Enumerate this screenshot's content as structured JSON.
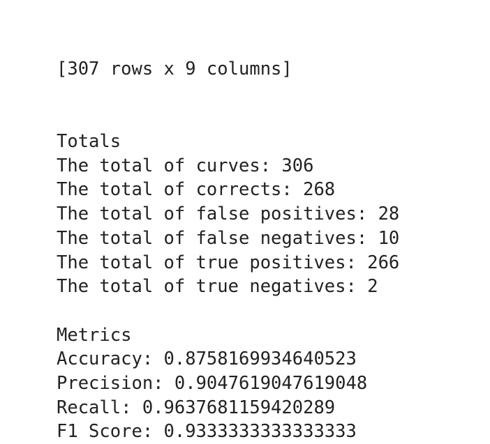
{
  "header": "[307 rows x 9 columns]",
  "sections": [
    {
      "title": "Totals",
      "lines": [
        "The total of curves: 306",
        "The total of corrects: 268",
        "The total of false positives: 28",
        "The total of false negatives: 10",
        "The total of true positives: 266",
        "The total of true negatives: 2"
      ]
    },
    {
      "title": "Metrics",
      "lines": [
        "Accuracy: 0.8758169934640523",
        "Precision: 0.9047619047619048",
        "Recall: 0.9637681159420289",
        "F1 Score: 0.9333333333333333"
      ]
    }
  ]
}
